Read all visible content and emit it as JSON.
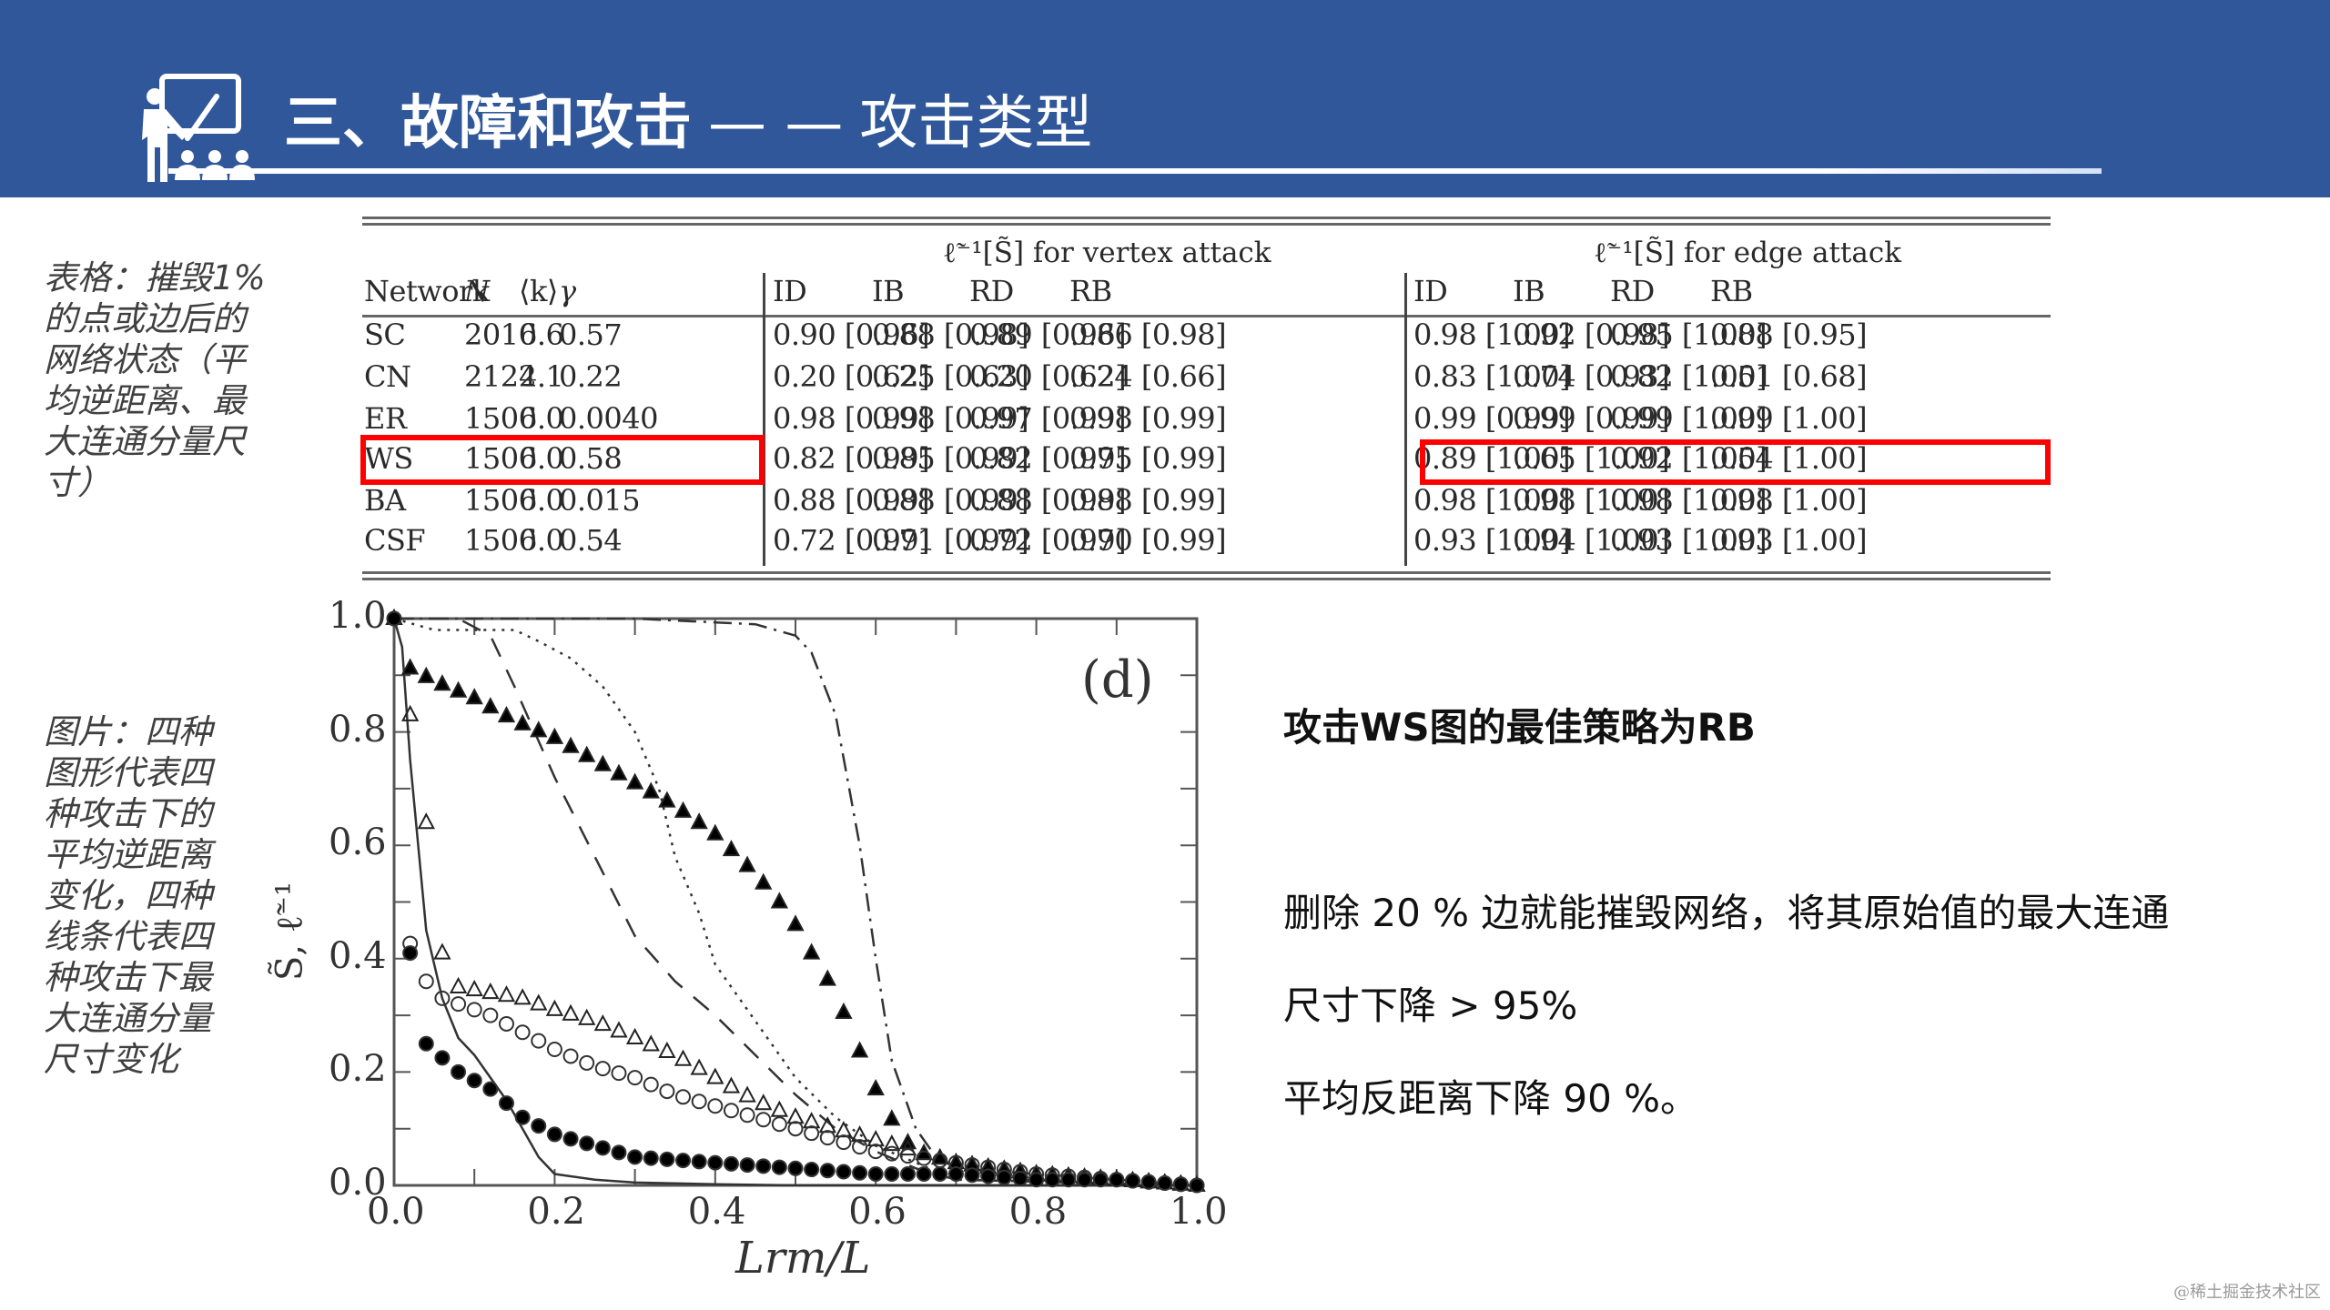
{
  "header": {
    "title_bold": "三、故障和攻击",
    "title_separator": "— —",
    "title_sub": "攻击类型",
    "background_color": "#30579a",
    "icon": "teacher-presentation-icon"
  },
  "captions": {
    "table": "表格：摧毁1%的点或边后的网络状态（平均逆距离、最大连通分量尺寸）",
    "figure": "图片：四种图形代表四种攻击下的平均逆距离变化，四种线条代表四种攻击下最大连通分量尺寸变化"
  },
  "table": {
    "vertex_group_title": "ℓ̃⁻¹[S̃] for vertex attack",
    "edge_group_title": "ℓ̃⁻¹[S̃] for edge attack",
    "columns": [
      "Network",
      "N",
      "⟨k⟩",
      "γ",
      "ID",
      "IB",
      "RD",
      "RB",
      "ID",
      "IB",
      "RD",
      "RB"
    ],
    "rows": [
      [
        "SC",
        "2010",
        "6.6",
        "0.57",
        "0.90 [0.96]",
        "0.88 [0.98]",
        "0.89 [0.96]",
        "0.86 [0.98]",
        "0.98 [1.00]",
        "0.92 [0.98]",
        "0.95 [1.00]",
        "0.88 [0.95]"
      ],
      [
        "CN",
        "2122",
        "4.1",
        "0.22",
        "0.20 [0.62]",
        "0.25 [0.63]",
        "0.20 [0.62]",
        "0.24 [0.66]",
        "0.83 [1.00]",
        "0.74 [0.93]",
        "0.82 [1.00]",
        "0.51 [0.68]"
      ],
      [
        "ER",
        "1500",
        "6.0",
        "0.0040",
        "0.98 [0.99]",
        "0.98 [0.99]",
        "0.97 [0.99]",
        "0.98 [0.99]",
        "0.99 [0.99]",
        "0.99 [0.99]",
        "0.99 [1.00]",
        "0.99 [1.00]"
      ],
      [
        "WS",
        "1500",
        "6.0",
        "0.58",
        "0.82 [0.99]",
        "0.85 [0.99]",
        "0.82 [0.99]",
        "0.75 [0.99]",
        "0.89 [1.00]",
        "0.65 [1.00]",
        "0.92 [1.00]",
        "0.54 [1.00]"
      ],
      [
        "BA",
        "1500",
        "6.0",
        "0.015",
        "0.88 [0.99]",
        "0.88 [0.99]",
        "0.88 [0.99]",
        "0.88 [0.99]",
        "0.98 [1.00]",
        "0.98 [1.00]",
        "0.98 [1.00]",
        "0.98 [1.00]"
      ],
      [
        "CSF",
        "1500",
        "6.0",
        "0.54",
        "0.72 [0.99]",
        "0.71 [0.99]",
        "0.72 [0.99]",
        "0.70 [0.99]",
        "0.93 [1.00]",
        "0.94 [1.00]",
        "0.93 [1.00]",
        "0.93 [1.00]"
      ]
    ],
    "highlight_row": "WS",
    "highlight_color": "#ff0000"
  },
  "plot": {
    "panel_label": "(d)",
    "xlabel": "Lrm/L",
    "ylabel": "S̃, ℓ̃⁻¹",
    "xticks": [
      "0.0",
      "0.2",
      "0.4",
      "0.6",
      "0.8",
      "1.0"
    ],
    "yticks": [
      "0.0",
      "0.2",
      "0.4",
      "0.6",
      "0.8",
      "1.0"
    ]
  },
  "chart_data": {
    "type": "scatter",
    "title": "(d)",
    "xlabel": "L_rm / L",
    "ylabel": "S̃, ℓ̃⁻¹",
    "xlim": [
      0,
      1
    ],
    "ylim": [
      0,
      1
    ],
    "grid": false,
    "legend": "none (markers = inverse average distance ℓ̃⁻¹ per attack; lines = largest component S̃ per attack)",
    "series": [
      {
        "name": "ℓ̃⁻¹ filled triangles",
        "marker": "filled-triangle",
        "x": [
          0,
          0.01,
          0.05,
          0.1,
          0.15,
          0.2,
          0.25,
          0.3,
          0.35,
          0.4,
          0.45,
          0.48,
          0.5,
          0.52,
          0.55,
          0.57,
          0.6,
          0.63,
          0.65,
          0.7,
          0.8,
          0.9,
          1.0
        ],
        "y": [
          1.0,
          0.92,
          0.89,
          0.86,
          0.82,
          0.79,
          0.75,
          0.71,
          0.67,
          0.62,
          0.55,
          0.5,
          0.46,
          0.41,
          0.34,
          0.27,
          0.17,
          0.09,
          0.06,
          0.04,
          0.02,
          0.01,
          0.0
        ]
      },
      {
        "name": "ℓ̃⁻¹ open triangles",
        "marker": "open-triangle",
        "x": [
          0,
          0.02,
          0.04,
          0.06,
          0.08,
          0.12,
          0.16,
          0.2,
          0.25,
          0.3,
          0.35,
          0.4,
          0.45,
          0.5,
          0.55,
          0.6,
          0.65,
          0.7,
          0.8,
          0.9,
          1.0
        ],
        "y": [
          1.0,
          0.83,
          0.64,
          0.41,
          0.35,
          0.34,
          0.33,
          0.31,
          0.29,
          0.26,
          0.23,
          0.19,
          0.15,
          0.12,
          0.1,
          0.08,
          0.06,
          0.04,
          0.02,
          0.01,
          0.0
        ]
      },
      {
        "name": "ℓ̃⁻¹ open circles",
        "marker": "open-circle",
        "x": [
          0,
          0.01,
          0.04,
          0.06,
          0.08,
          0.12,
          0.16,
          0.2,
          0.25,
          0.3,
          0.35,
          0.4,
          0.45,
          0.5,
          0.55,
          0.6,
          0.65,
          0.7,
          0.8,
          0.9,
          1.0
        ],
        "y": [
          1.0,
          0.46,
          0.36,
          0.33,
          0.32,
          0.3,
          0.27,
          0.24,
          0.21,
          0.19,
          0.16,
          0.14,
          0.12,
          0.1,
          0.08,
          0.06,
          0.05,
          0.04,
          0.02,
          0.01,
          0.0
        ]
      },
      {
        "name": "ℓ̃⁻¹ filled circles",
        "marker": "filled-circle",
        "x": [
          0,
          0.01,
          0.03,
          0.04,
          0.08,
          0.12,
          0.16,
          0.2,
          0.25,
          0.3,
          0.4,
          0.5,
          0.6,
          0.7,
          0.8,
          0.9,
          1.0
        ],
        "y": [
          1.0,
          0.51,
          0.31,
          0.25,
          0.2,
          0.17,
          0.12,
          0.09,
          0.07,
          0.05,
          0.04,
          0.03,
          0.02,
          0.02,
          0.01,
          0.01,
          0.0
        ]
      },
      {
        "name": "S̃ solid line",
        "line": "solid",
        "x": [
          0,
          0.01,
          0.02,
          0.04,
          0.06,
          0.08,
          0.1,
          0.12,
          0.14,
          0.16,
          0.18,
          0.2,
          0.25,
          0.3,
          0.4,
          0.5,
          1.0
        ],
        "y": [
          1.0,
          0.95,
          0.75,
          0.45,
          0.33,
          0.26,
          0.23,
          0.19,
          0.15,
          0.1,
          0.05,
          0.02,
          0.01,
          0.005,
          0.002,
          0.0,
          0.0
        ]
      },
      {
        "name": "S̃ dashed line",
        "line": "dashed",
        "x": [
          0,
          0.08,
          0.12,
          0.15,
          0.2,
          0.25,
          0.3,
          0.35,
          0.4,
          0.45,
          0.5,
          0.55,
          0.6,
          0.65,
          0.7,
          1.0
        ],
        "y": [
          1.0,
          1.0,
          0.97,
          0.88,
          0.72,
          0.58,
          0.44,
          0.36,
          0.3,
          0.23,
          0.16,
          0.1,
          0.06,
          0.03,
          0.01,
          0.0
        ]
      },
      {
        "name": "S̃ dotted line",
        "line": "dotted",
        "x": [
          0,
          0.05,
          0.1,
          0.15,
          0.18,
          0.22,
          0.26,
          0.3,
          0.33,
          0.35,
          0.38,
          0.4,
          0.45,
          0.5,
          0.55,
          0.6,
          0.65,
          0.7,
          1.0
        ],
        "y": [
          1.0,
          0.98,
          0.98,
          0.98,
          0.96,
          0.93,
          0.88,
          0.8,
          0.7,
          0.58,
          0.48,
          0.39,
          0.29,
          0.19,
          0.12,
          0.07,
          0.04,
          0.01,
          0.0
        ]
      },
      {
        "name": "S̃ dash-dot line",
        "line": "dash-dot",
        "x": [
          0,
          0.3,
          0.45,
          0.5,
          0.52,
          0.55,
          0.58,
          0.6,
          0.62,
          0.65,
          0.67,
          0.7,
          1.0
        ],
        "y": [
          1.0,
          1.0,
          0.99,
          0.97,
          0.94,
          0.83,
          0.6,
          0.4,
          0.22,
          0.1,
          0.06,
          0.03,
          0.0
        ]
      }
    ]
  },
  "right_panel": {
    "heading": "攻击WS图的最佳策略为RB",
    "line1": "删除 20 % 边就能摧毁网络，将其原始值的最大连通",
    "line2": "尺寸下降 > 95%",
    "line3": "平均反距离下降 90 %。"
  },
  "watermark": "@稀土掘金技术社区"
}
